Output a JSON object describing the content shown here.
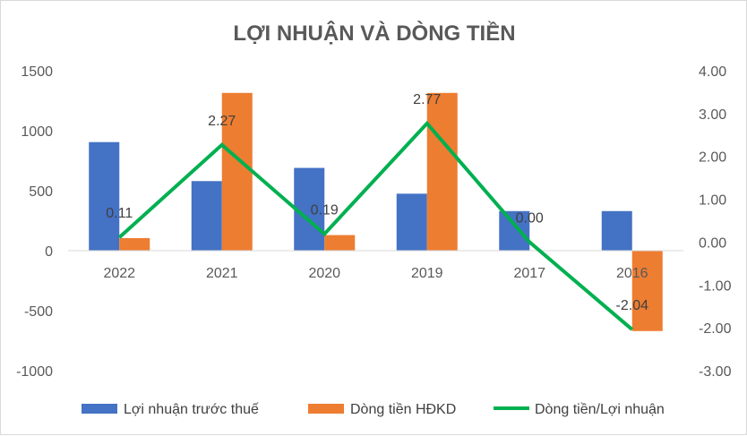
{
  "chart_data": {
    "type": "bar",
    "title": "LỢI NHUẬN VÀ DÒNG TIỀN",
    "categories": [
      "2022",
      "2021",
      "2020",
      "2019",
      "2017",
      "2016"
    ],
    "series": [
      {
        "name": "Lợi nhuận trước thuế",
        "type": "bar",
        "axis": "left",
        "color": "#4472C4",
        "values": [
          905,
          580,
          690,
          475,
          330,
          330
        ]
      },
      {
        "name": "Dòng tiền HĐKD",
        "type": "bar",
        "axis": "left",
        "color": "#ED7D31",
        "values": [
          105,
          1315,
          130,
          1315,
          0,
          -670
        ]
      },
      {
        "name": "Dòng tiền/Lợi nhuận",
        "type": "line",
        "axis": "right",
        "color": "#00B050",
        "values": [
          0.11,
          2.27,
          0.19,
          2.77,
          0.0,
          -2.04
        ],
        "labels": [
          "0.11",
          "2.27",
          "0.19",
          "2.77",
          "0.00",
          "-2.04"
        ]
      }
    ],
    "y_left": {
      "min": -1000,
      "max": 1500,
      "step": 500,
      "tick_labels": [
        "-1000",
        "-500",
        "0",
        "500",
        "1000",
        "1500"
      ]
    },
    "y_right": {
      "min": -3,
      "max": 4,
      "step": 1,
      "tick_labels": [
        "-3.00",
        "-2.00",
        "-1.00",
        "0.00",
        "1.00",
        "2.00",
        "3.00",
        "4.00"
      ]
    },
    "grid": false,
    "legend_position": "bottom"
  }
}
